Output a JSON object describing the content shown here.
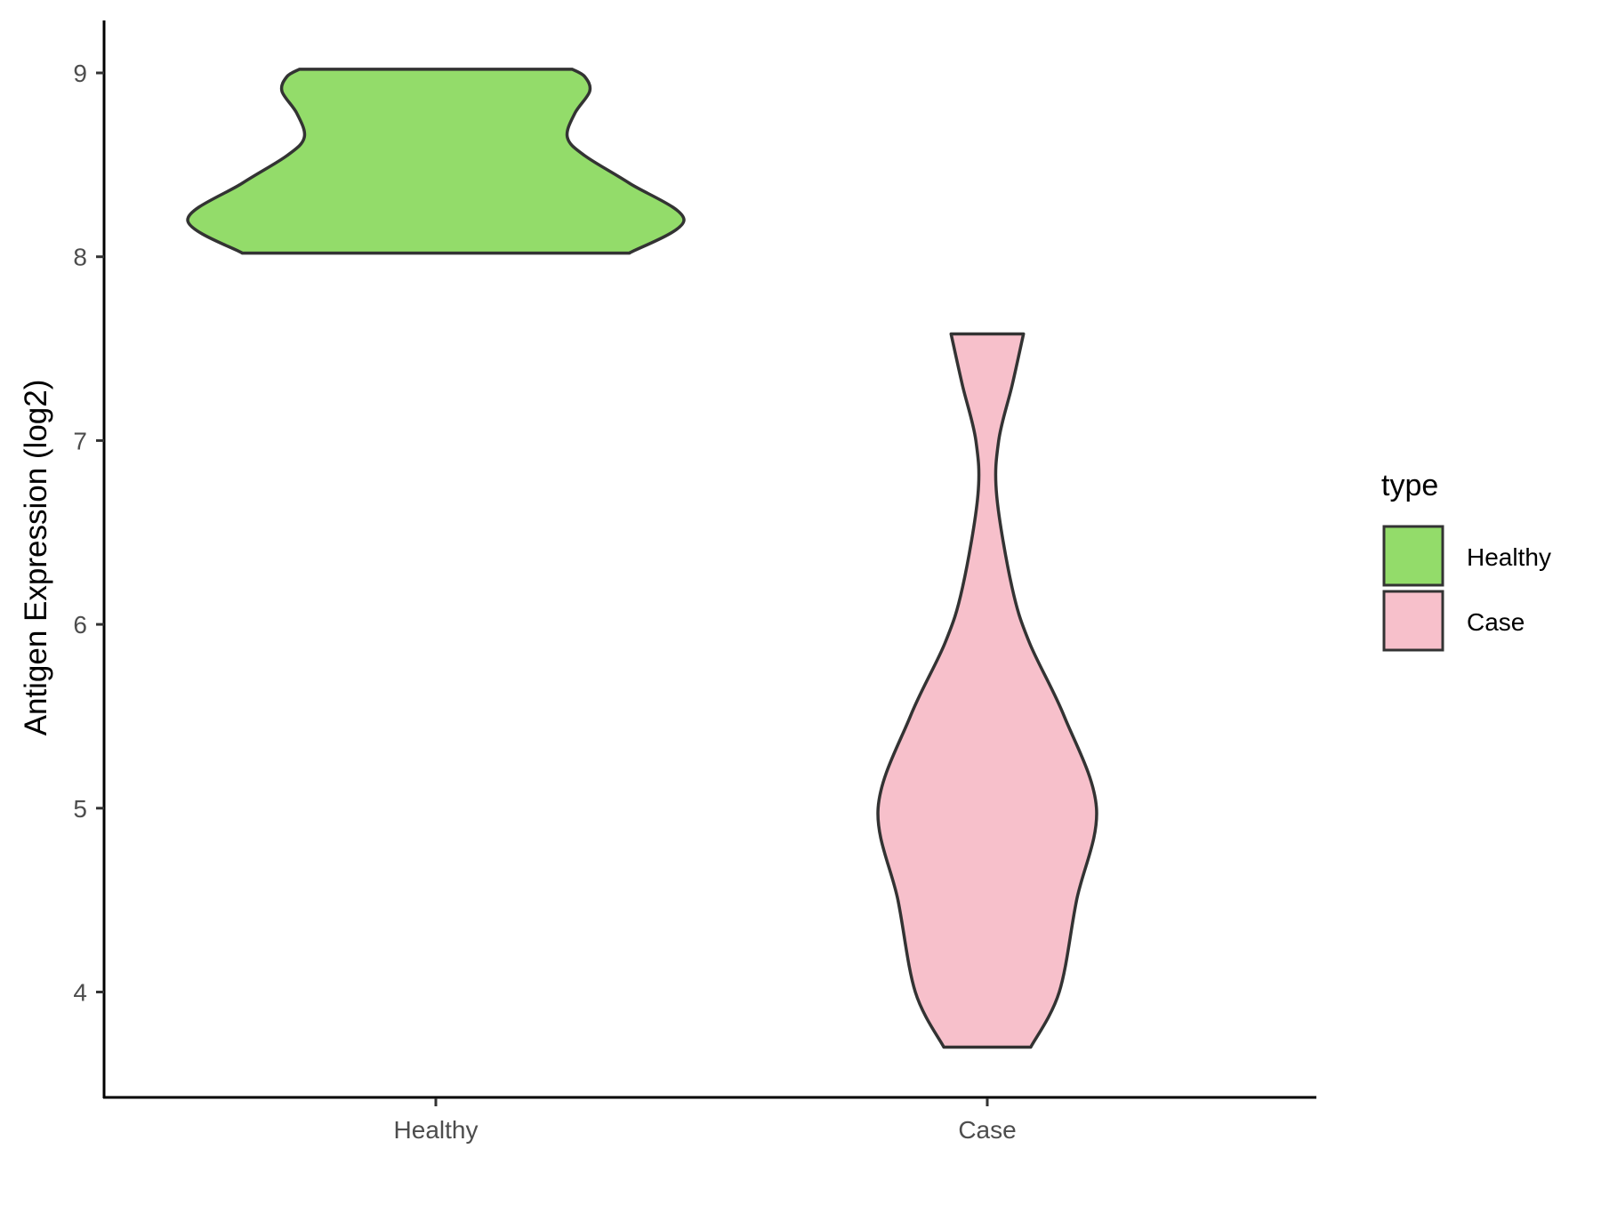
{
  "chart_data": {
    "type": "violin",
    "title": "",
    "xlabel": "",
    "ylabel": "Antigen Expression (log2)",
    "ylim": [
      3.42,
      9.3
    ],
    "yticks": [
      "4",
      "5",
      "6",
      "7",
      "8",
      "9"
    ],
    "categories": [
      "Healthy",
      "Case"
    ],
    "grid": false,
    "legend": {
      "title": "type",
      "placement": "right",
      "entries": [
        "Healthy",
        "Case"
      ]
    },
    "series": [
      {
        "name": "Healthy",
        "color": "#93DC6A",
        "min": 8.02,
        "max": 9.02,
        "density_profile": [
          [
            8.02,
            0.78
          ],
          [
            8.2,
            1.0
          ],
          [
            8.4,
            0.78
          ],
          [
            8.55,
            0.6
          ],
          [
            8.65,
            0.53
          ],
          [
            8.78,
            0.56
          ],
          [
            8.9,
            0.62
          ],
          [
            8.98,
            0.6
          ],
          [
            9.02,
            0.55
          ]
        ]
      },
      {
        "name": "Case",
        "color": "#F7C0CB",
        "min": 3.7,
        "max": 7.58,
        "density_profile": [
          [
            3.7,
            0.175
          ],
          [
            4.0,
            0.29
          ],
          [
            4.5,
            0.36
          ],
          [
            5.0,
            0.44
          ],
          [
            5.5,
            0.31
          ],
          [
            5.9,
            0.17
          ],
          [
            6.2,
            0.1
          ],
          [
            6.7,
            0.038
          ],
          [
            7.0,
            0.046
          ],
          [
            7.3,
            0.1
          ],
          [
            7.58,
            0.146
          ]
        ]
      }
    ],
    "outline_color": "#333333"
  }
}
